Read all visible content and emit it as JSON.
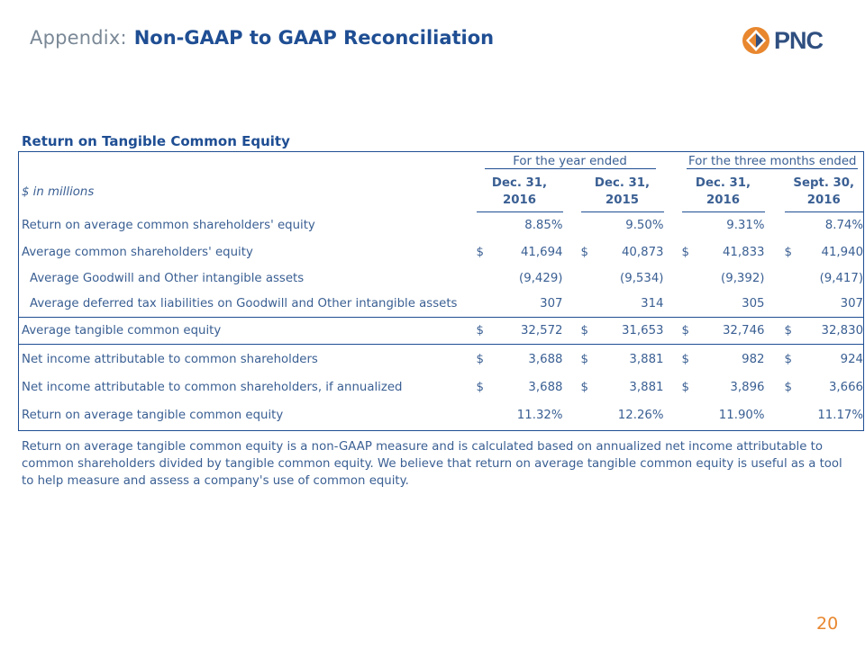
{
  "header": {
    "prefix": "Appendix:",
    "title": "Non-GAAP to GAAP Reconciliation"
  },
  "logo": {
    "text": "PNC",
    "brand_color": "#e8872f"
  },
  "section_title": "Return on Tangible Common Equity",
  "table": {
    "group_year": "For the year ended",
    "group_quarter": "For the three months ended",
    "unit_label": "$ in millions",
    "columns": [
      {
        "line1": "Dec. 31,",
        "line2": "2016"
      },
      {
        "line1": "Dec. 31,",
        "line2": "2015"
      },
      {
        "line1": "Dec. 31,",
        "line2": "2016"
      },
      {
        "line1": "Sept. 30,",
        "line2": "2016"
      }
    ],
    "rows": [
      {
        "label": "Return on average common shareholders' equity",
        "indent": false,
        "dollar": false,
        "values": [
          "8.85%",
          "9.50%",
          "9.31%",
          "8.74%"
        ]
      },
      {
        "label": "Average common shareholders' equity",
        "indent": false,
        "dollar": true,
        "values": [
          "41,694",
          "40,873",
          "41,833",
          "41,940"
        ]
      },
      {
        "label": "Average Goodwill and Other intangible assets",
        "indent": true,
        "dollar": false,
        "values": [
          "(9,429)",
          "(9,534)",
          "(9,392)",
          "(9,417)"
        ]
      },
      {
        "label": "Average deferred tax liabilities on Goodwill and Other intangible assets",
        "indent": true,
        "dollar": false,
        "values": [
          "307",
          "314",
          "305",
          "307"
        ]
      },
      {
        "label": "Average tangible common equity",
        "indent": false,
        "dollar": true,
        "values": [
          "32,572",
          "31,653",
          "32,746",
          "32,830"
        ]
      },
      {
        "label": "Net income attributable to common shareholders",
        "indent": false,
        "dollar": true,
        "values": [
          "3,688",
          "3,881",
          "982",
          "924"
        ]
      },
      {
        "label": "Net income attributable to common shareholders, if annualized",
        "indent": false,
        "dollar": true,
        "values": [
          "3,688",
          "3,881",
          "3,896",
          "3,666"
        ]
      },
      {
        "label": "Return on average tangible common equity",
        "indent": false,
        "dollar": false,
        "values": [
          "11.32%",
          "12.26%",
          "11.90%",
          "11.17%"
        ]
      }
    ],
    "dollar_sign": "$"
  },
  "note": "Return on average tangible common equity is a non-GAAP measure and is calculated based on annualized net income attributable to common shareholders divided by tangible common equity.  We believe that return on average tangible common equity is useful as a tool to help measure and assess a company's use of common equity.",
  "page_number": "20"
}
